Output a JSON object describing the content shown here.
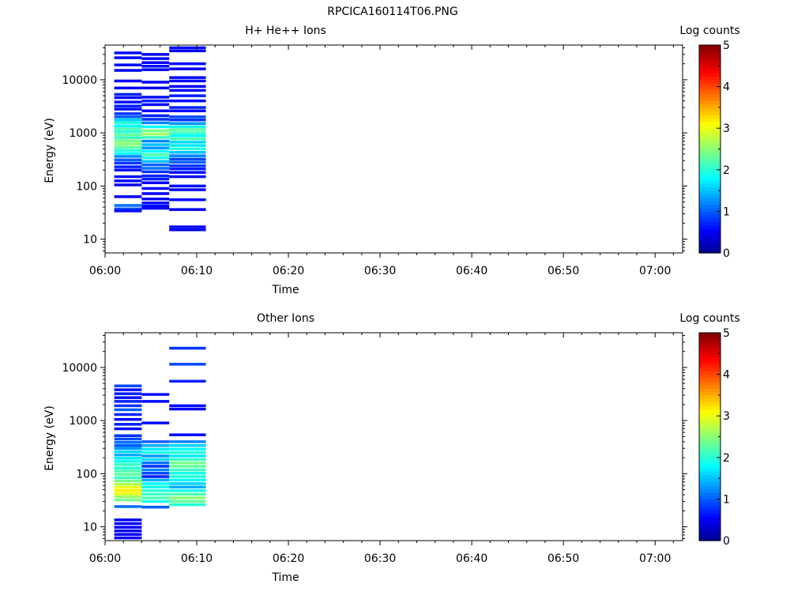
{
  "title": "RPCICA160114T06.PNG",
  "colormap_stops": [
    "#00008f",
    "#0000ff",
    "#00ffff",
    "#ffff00",
    "#ff0000",
    "#800000"
  ],
  "chart_data": [
    {
      "type": "heatmap",
      "title": "H+ He++ Ions",
      "xlabel": "Time",
      "ylabel": "Energy (eV)",
      "colorbar_label": "Log counts",
      "x_scale": "time",
      "y_scale": "log",
      "xlim": [
        "06:00",
        "07:03"
      ],
      "ylim": [
        5.5,
        45000
      ],
      "x_ticks": [
        "06:00",
        "06:10",
        "06:20",
        "06:30",
        "06:40",
        "06:50",
        "07:00"
      ],
      "y_ticks": [
        "10",
        "100",
        "1000",
        "10000"
      ],
      "color_range": [
        0,
        5
      ],
      "colorbar_ticks": [
        "0",
        "1",
        "2",
        "3",
        "4",
        "5"
      ],
      "columns": [
        {
          "t_start": "06:01",
          "t_end": "06:04",
          "cells": [
            {
              "e": 32000,
              "v": 0.6
            },
            {
              "e": 26000,
              "v": 0.5
            },
            {
              "e": 19000,
              "v": 0.6
            },
            {
              "e": 15000,
              "v": 0.5
            },
            {
              "e": 9500,
              "v": 0.6
            },
            {
              "e": 7000,
              "v": 0.5
            },
            {
              "e": 5300,
              "v": 0.7
            },
            {
              "e": 4600,
              "v": 0.6
            },
            {
              "e": 3800,
              "v": 0.6
            },
            {
              "e": 3200,
              "v": 0.7
            },
            {
              "e": 2800,
              "v": 0.6
            },
            {
              "e": 2300,
              "v": 0.8
            },
            {
              "e": 2000,
              "v": 1.0
            },
            {
              "e": 1750,
              "v": 1.6
            },
            {
              "e": 1550,
              "v": 2.0
            },
            {
              "e": 1350,
              "v": 1.8
            },
            {
              "e": 1200,
              "v": 2.2
            },
            {
              "e": 1050,
              "v": 2.0
            },
            {
              "e": 920,
              "v": 2.3
            },
            {
              "e": 810,
              "v": 2.1
            },
            {
              "e": 710,
              "v": 2.4
            },
            {
              "e": 620,
              "v": 2.5
            },
            {
              "e": 540,
              "v": 2.3
            },
            {
              "e": 470,
              "v": 2.0
            },
            {
              "e": 410,
              "v": 1.8
            },
            {
              "e": 360,
              "v": 1.2
            },
            {
              "e": 310,
              "v": 1.0
            },
            {
              "e": 270,
              "v": 0.8
            },
            {
              "e": 230,
              "v": 0.7
            },
            {
              "e": 200,
              "v": 0.6
            },
            {
              "e": 150,
              "v": 0.6
            },
            {
              "e": 125,
              "v": 0.6
            },
            {
              "e": 105,
              "v": 0.5
            },
            {
              "e": 63,
              "v": 0.5
            },
            {
              "e": 43,
              "v": 1.1
            },
            {
              "e": 37,
              "v": 0.9
            },
            {
              "e": 34,
              "v": 0.6
            }
          ]
        },
        {
          "t_start": "06:04",
          "t_end": "06:07",
          "cells": [
            {
              "e": 30000,
              "v": 0.5
            },
            {
              "e": 25000,
              "v": 0.6
            },
            {
              "e": 21000,
              "v": 0.5
            },
            {
              "e": 18000,
              "v": 0.6
            },
            {
              "e": 15500,
              "v": 0.5
            },
            {
              "e": 9000,
              "v": 0.5
            },
            {
              "e": 7000,
              "v": 0.5
            },
            {
              "e": 4700,
              "v": 0.6
            },
            {
              "e": 4000,
              "v": 0.7
            },
            {
              "e": 3400,
              "v": 0.6
            },
            {
              "e": 2600,
              "v": 0.6
            },
            {
              "e": 2100,
              "v": 0.7
            },
            {
              "e": 1800,
              "v": 0.8
            },
            {
              "e": 1550,
              "v": 1.2
            },
            {
              "e": 1300,
              "v": 1.8
            },
            {
              "e": 1100,
              "v": 2.4
            },
            {
              "e": 950,
              "v": 2.6
            },
            {
              "e": 820,
              "v": 2.1
            },
            {
              "e": 700,
              "v": 1.2
            },
            {
              "e": 600,
              "v": 1.5
            },
            {
              "e": 520,
              "v": 1.3
            },
            {
              "e": 450,
              "v": 1.8
            },
            {
              "e": 390,
              "v": 2.2
            },
            {
              "e": 340,
              "v": 1.9
            },
            {
              "e": 290,
              "v": 1.5
            },
            {
              "e": 250,
              "v": 1.0
            },
            {
              "e": 215,
              "v": 1.1
            },
            {
              "e": 185,
              "v": 0.8
            },
            {
              "e": 155,
              "v": 0.7
            },
            {
              "e": 135,
              "v": 0.7
            },
            {
              "e": 115,
              "v": 0.5
            },
            {
              "e": 90,
              "v": 0.6
            },
            {
              "e": 72,
              "v": 0.5
            },
            {
              "e": 57,
              "v": 0.5
            },
            {
              "e": 48,
              "v": 0.6
            },
            {
              "e": 42,
              "v": 0.5
            },
            {
              "e": 38,
              "v": 0.6
            }
          ]
        },
        {
          "t_start": "06:07",
          "t_end": "06:11",
          "cells": [
            {
              "e": 40000,
              "v": 0.6
            },
            {
              "e": 35000,
              "v": 0.5
            },
            {
              "e": 20000,
              "v": 0.6
            },
            {
              "e": 16000,
              "v": 0.5
            },
            {
              "e": 11000,
              "v": 0.6
            },
            {
              "e": 9500,
              "v": 0.6
            },
            {
              "e": 7500,
              "v": 0.5
            },
            {
              "e": 6300,
              "v": 0.6
            },
            {
              "e": 5000,
              "v": 0.7
            },
            {
              "e": 4000,
              "v": 0.6
            },
            {
              "e": 3000,
              "v": 0.7
            },
            {
              "e": 2600,
              "v": 0.6
            },
            {
              "e": 2000,
              "v": 0.9
            },
            {
              "e": 1750,
              "v": 0.8
            },
            {
              "e": 1500,
              "v": 1.3
            },
            {
              "e": 1300,
              "v": 1.9
            },
            {
              "e": 1150,
              "v": 2.3
            },
            {
              "e": 1000,
              "v": 2.1
            },
            {
              "e": 880,
              "v": 1.8
            },
            {
              "e": 770,
              "v": 2.2
            },
            {
              "e": 670,
              "v": 1.6
            },
            {
              "e": 580,
              "v": 1.7
            },
            {
              "e": 500,
              "v": 2.0
            },
            {
              "e": 430,
              "v": 1.5
            },
            {
              "e": 370,
              "v": 1.2
            },
            {
              "e": 320,
              "v": 0.9
            },
            {
              "e": 280,
              "v": 1.0
            },
            {
              "e": 240,
              "v": 0.8
            },
            {
              "e": 210,
              "v": 0.7
            },
            {
              "e": 180,
              "v": 0.6
            },
            {
              "e": 150,
              "v": 0.6
            },
            {
              "e": 100,
              "v": 0.6
            },
            {
              "e": 85,
              "v": 0.5
            },
            {
              "e": 55,
              "v": 0.6
            },
            {
              "e": 36,
              "v": 0.5
            },
            {
              "e": 17,
              "v": 0.5
            },
            {
              "e": 15,
              "v": 0.5
            }
          ]
        }
      ]
    },
    {
      "type": "heatmap",
      "title": "Other Ions",
      "xlabel": "Time",
      "ylabel": "Energy (eV)",
      "colorbar_label": "Log counts",
      "x_scale": "time",
      "y_scale": "log",
      "xlim": [
        "06:00",
        "07:03"
      ],
      "ylim": [
        5.5,
        45000
      ],
      "x_ticks": [
        "06:00",
        "06:10",
        "06:20",
        "06:30",
        "06:40",
        "06:50",
        "07:00"
      ],
      "y_ticks": [
        "10",
        "100",
        "1000",
        "10000"
      ],
      "color_range": [
        0,
        5
      ],
      "colorbar_ticks": [
        "0",
        "1",
        "2",
        "3",
        "4",
        "5"
      ],
      "columns": [
        {
          "t_start": "06:01",
          "t_end": "06:04",
          "cells": [
            {
              "e": 4500,
              "v": 0.9
            },
            {
              "e": 3800,
              "v": 0.6
            },
            {
              "e": 3200,
              "v": 0.7
            },
            {
              "e": 2700,
              "v": 0.6
            },
            {
              "e": 2300,
              "v": 0.7
            },
            {
              "e": 1900,
              "v": 0.8
            },
            {
              "e": 1600,
              "v": 1.0
            },
            {
              "e": 1300,
              "v": 0.7
            },
            {
              "e": 1050,
              "v": 0.6
            },
            {
              "e": 850,
              "v": 0.7
            },
            {
              "e": 700,
              "v": 0.6
            },
            {
              "e": 520,
              "v": 0.8
            },
            {
              "e": 450,
              "v": 0.9
            },
            {
              "e": 390,
              "v": 1.1
            },
            {
              "e": 340,
              "v": 1.0
            },
            {
              "e": 300,
              "v": 1.3
            },
            {
              "e": 260,
              "v": 1.6
            },
            {
              "e": 225,
              "v": 1.4
            },
            {
              "e": 195,
              "v": 1.7
            },
            {
              "e": 170,
              "v": 1.9
            },
            {
              "e": 148,
              "v": 2.1
            },
            {
              "e": 128,
              "v": 2.0
            },
            {
              "e": 112,
              "v": 2.2
            },
            {
              "e": 97,
              "v": 2.3
            },
            {
              "e": 84,
              "v": 2.1
            },
            {
              "e": 73,
              "v": 2.4
            },
            {
              "e": 63,
              "v": 2.7
            },
            {
              "e": 55,
              "v": 3.0
            },
            {
              "e": 48,
              "v": 3.2
            },
            {
              "e": 42,
              "v": 3.0
            },
            {
              "e": 37,
              "v": 2.6
            },
            {
              "e": 32,
              "v": 2.4
            },
            {
              "e": 24,
              "v": 1.1
            },
            {
              "e": 13.5,
              "v": 0.5
            },
            {
              "e": 11.5,
              "v": 0.5
            },
            {
              "e": 9.8,
              "v": 0.5
            },
            {
              "e": 8.4,
              "v": 0.5
            },
            {
              "e": 7.2,
              "v": 0.5
            },
            {
              "e": 6.2,
              "v": 0.5
            }
          ]
        },
        {
          "t_start": "06:04",
          "t_end": "06:07",
          "cells": [
            {
              "e": 3100,
              "v": 0.6
            },
            {
              "e": 2300,
              "v": 0.6
            },
            {
              "e": 900,
              "v": 0.6
            },
            {
              "e": 400,
              "v": 1.0
            },
            {
              "e": 340,
              "v": 1.4
            },
            {
              "e": 290,
              "v": 1.7
            },
            {
              "e": 250,
              "v": 1.9
            },
            {
              "e": 215,
              "v": 1.3
            },
            {
              "e": 185,
              "v": 1.6
            },
            {
              "e": 160,
              "v": 1.1
            },
            {
              "e": 138,
              "v": 0.8
            },
            {
              "e": 118,
              "v": 1.2
            },
            {
              "e": 102,
              "v": 0.9
            },
            {
              "e": 88,
              "v": 0.7
            },
            {
              "e": 76,
              "v": 1.4
            },
            {
              "e": 65,
              "v": 1.8
            },
            {
              "e": 56,
              "v": 1.9
            },
            {
              "e": 48,
              "v": 2.0
            },
            {
              "e": 41,
              "v": 2.1
            },
            {
              "e": 35,
              "v": 2.2
            },
            {
              "e": 30,
              "v": 1.9
            },
            {
              "e": 23.5,
              "v": 1.0
            }
          ]
        },
        {
          "t_start": "06:07",
          "t_end": "06:11",
          "cells": [
            {
              "e": 23000,
              "v": 0.8
            },
            {
              "e": 11500,
              "v": 0.9
            },
            {
              "e": 5500,
              "v": 0.7
            },
            {
              "e": 1900,
              "v": 0.6
            },
            {
              "e": 1650,
              "v": 0.5
            },
            {
              "e": 540,
              "v": 0.6
            },
            {
              "e": 400,
              "v": 1.2
            },
            {
              "e": 340,
              "v": 1.6
            },
            {
              "e": 290,
              "v": 1.8
            },
            {
              "e": 250,
              "v": 2.0
            },
            {
              "e": 215,
              "v": 1.7
            },
            {
              "e": 185,
              "v": 2.1
            },
            {
              "e": 160,
              "v": 2.4
            },
            {
              "e": 138,
              "v": 2.3
            },
            {
              "e": 118,
              "v": 2.1
            },
            {
              "e": 102,
              "v": 1.9
            },
            {
              "e": 88,
              "v": 2.0
            },
            {
              "e": 76,
              "v": 1.8
            },
            {
              "e": 65,
              "v": 1.6
            },
            {
              "e": 56,
              "v": 1.4
            },
            {
              "e": 48,
              "v": 1.9
            },
            {
              "e": 41,
              "v": 2.2
            },
            {
              "e": 35,
              "v": 2.5
            },
            {
              "e": 30,
              "v": 2.3
            },
            {
              "e": 26,
              "v": 2.0
            }
          ]
        }
      ]
    }
  ]
}
